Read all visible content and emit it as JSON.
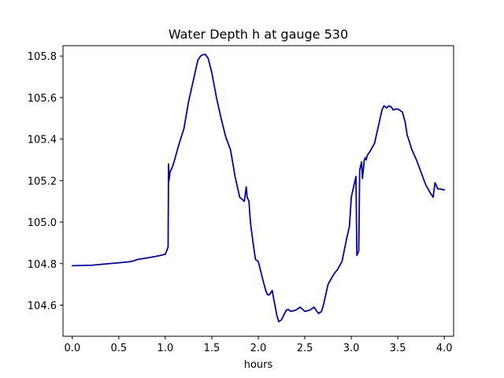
{
  "chart_data": {
    "type": "line",
    "title": "Water Depth h at gauge 530",
    "xlabel": "hours",
    "ylabel": "",
    "xlim": [
      -0.1,
      4.1
    ],
    "ylim": [
      104.45,
      105.85
    ],
    "xticks": [
      0.0,
      0.5,
      1.0,
      1.5,
      2.0,
      2.5,
      3.0,
      3.5,
      4.0
    ],
    "xtick_labels": [
      "0.0",
      "0.5",
      "1.0",
      "1.5",
      "2.0",
      "2.5",
      "3.0",
      "3.5",
      "4.0"
    ],
    "yticks": [
      104.6,
      104.8,
      105.0,
      105.2,
      105.4,
      105.6,
      105.8
    ],
    "ytick_labels": [
      "104.6",
      "104.8",
      "105.0",
      "105.2",
      "105.4",
      "105.6",
      "105.8"
    ],
    "grid": false,
    "legend": false,
    "series": [
      {
        "color": "#0000cc",
        "x": [
          0.0,
          0.2,
          0.4,
          0.6,
          0.65,
          0.7,
          0.8,
          0.9,
          0.95,
          1.0,
          1.03,
          1.035,
          1.04,
          1.05,
          1.08,
          1.1,
          1.15,
          1.2,
          1.25,
          1.3,
          1.35,
          1.38,
          1.4,
          1.43,
          1.46,
          1.5,
          1.55,
          1.6,
          1.65,
          1.7,
          1.72,
          1.75,
          1.8,
          1.85,
          1.87,
          1.88,
          1.9,
          1.91,
          1.92,
          1.95,
          1.97,
          2.0,
          2.05,
          2.08,
          2.1,
          2.12,
          2.15,
          2.17,
          2.2,
          2.22,
          2.25,
          2.3,
          2.32,
          2.35,
          2.4,
          2.45,
          2.5,
          2.55,
          2.6,
          2.63,
          2.65,
          2.68,
          2.7,
          2.73,
          2.75,
          2.8,
          2.83,
          2.85,
          2.9,
          2.95,
          2.98,
          3.0,
          3.02,
          3.05,
          3.06,
          3.07,
          3.08,
          3.09,
          3.1,
          3.11,
          3.12,
          3.14,
          3.15,
          3.16,
          3.17,
          3.2,
          3.25,
          3.3,
          3.33,
          3.35,
          3.38,
          3.4,
          3.43,
          3.45,
          3.48,
          3.5,
          3.55,
          3.58,
          3.6,
          3.63,
          3.65,
          3.7,
          3.75,
          3.8,
          3.85,
          3.88,
          3.9,
          3.91,
          3.92,
          3.93,
          3.95,
          4.0
        ],
        "y": [
          104.79,
          104.792,
          104.8,
          104.808,
          104.812,
          104.82,
          104.827,
          104.835,
          104.84,
          104.845,
          104.88,
          105.28,
          105.2,
          105.24,
          105.27,
          105.3,
          105.38,
          105.45,
          105.58,
          105.68,
          105.78,
          105.8,
          105.806,
          105.808,
          105.79,
          105.72,
          105.6,
          105.5,
          105.41,
          105.35,
          105.3,
          105.22,
          105.12,
          105.1,
          105.17,
          105.12,
          105.1,
          105.03,
          104.98,
          104.88,
          104.82,
          104.81,
          104.72,
          104.67,
          104.65,
          104.65,
          104.67,
          104.62,
          104.55,
          104.52,
          104.53,
          104.575,
          104.58,
          104.57,
          104.575,
          104.59,
          104.57,
          104.575,
          104.59,
          104.57,
          104.56,
          104.57,
          104.6,
          104.66,
          104.7,
          104.74,
          104.76,
          104.77,
          104.81,
          104.92,
          104.98,
          105.12,
          105.16,
          105.22,
          104.84,
          104.85,
          104.86,
          105.25,
          105.27,
          105.29,
          105.21,
          105.3,
          105.31,
          105.3,
          105.32,
          105.34,
          105.38,
          105.48,
          105.54,
          105.56,
          105.55,
          105.56,
          105.555,
          105.54,
          105.545,
          105.545,
          105.53,
          105.48,
          105.42,
          105.38,
          105.35,
          105.3,
          105.24,
          105.18,
          105.14,
          105.12,
          105.19,
          105.18,
          105.17,
          105.16,
          105.16,
          105.155
        ]
      }
    ]
  }
}
